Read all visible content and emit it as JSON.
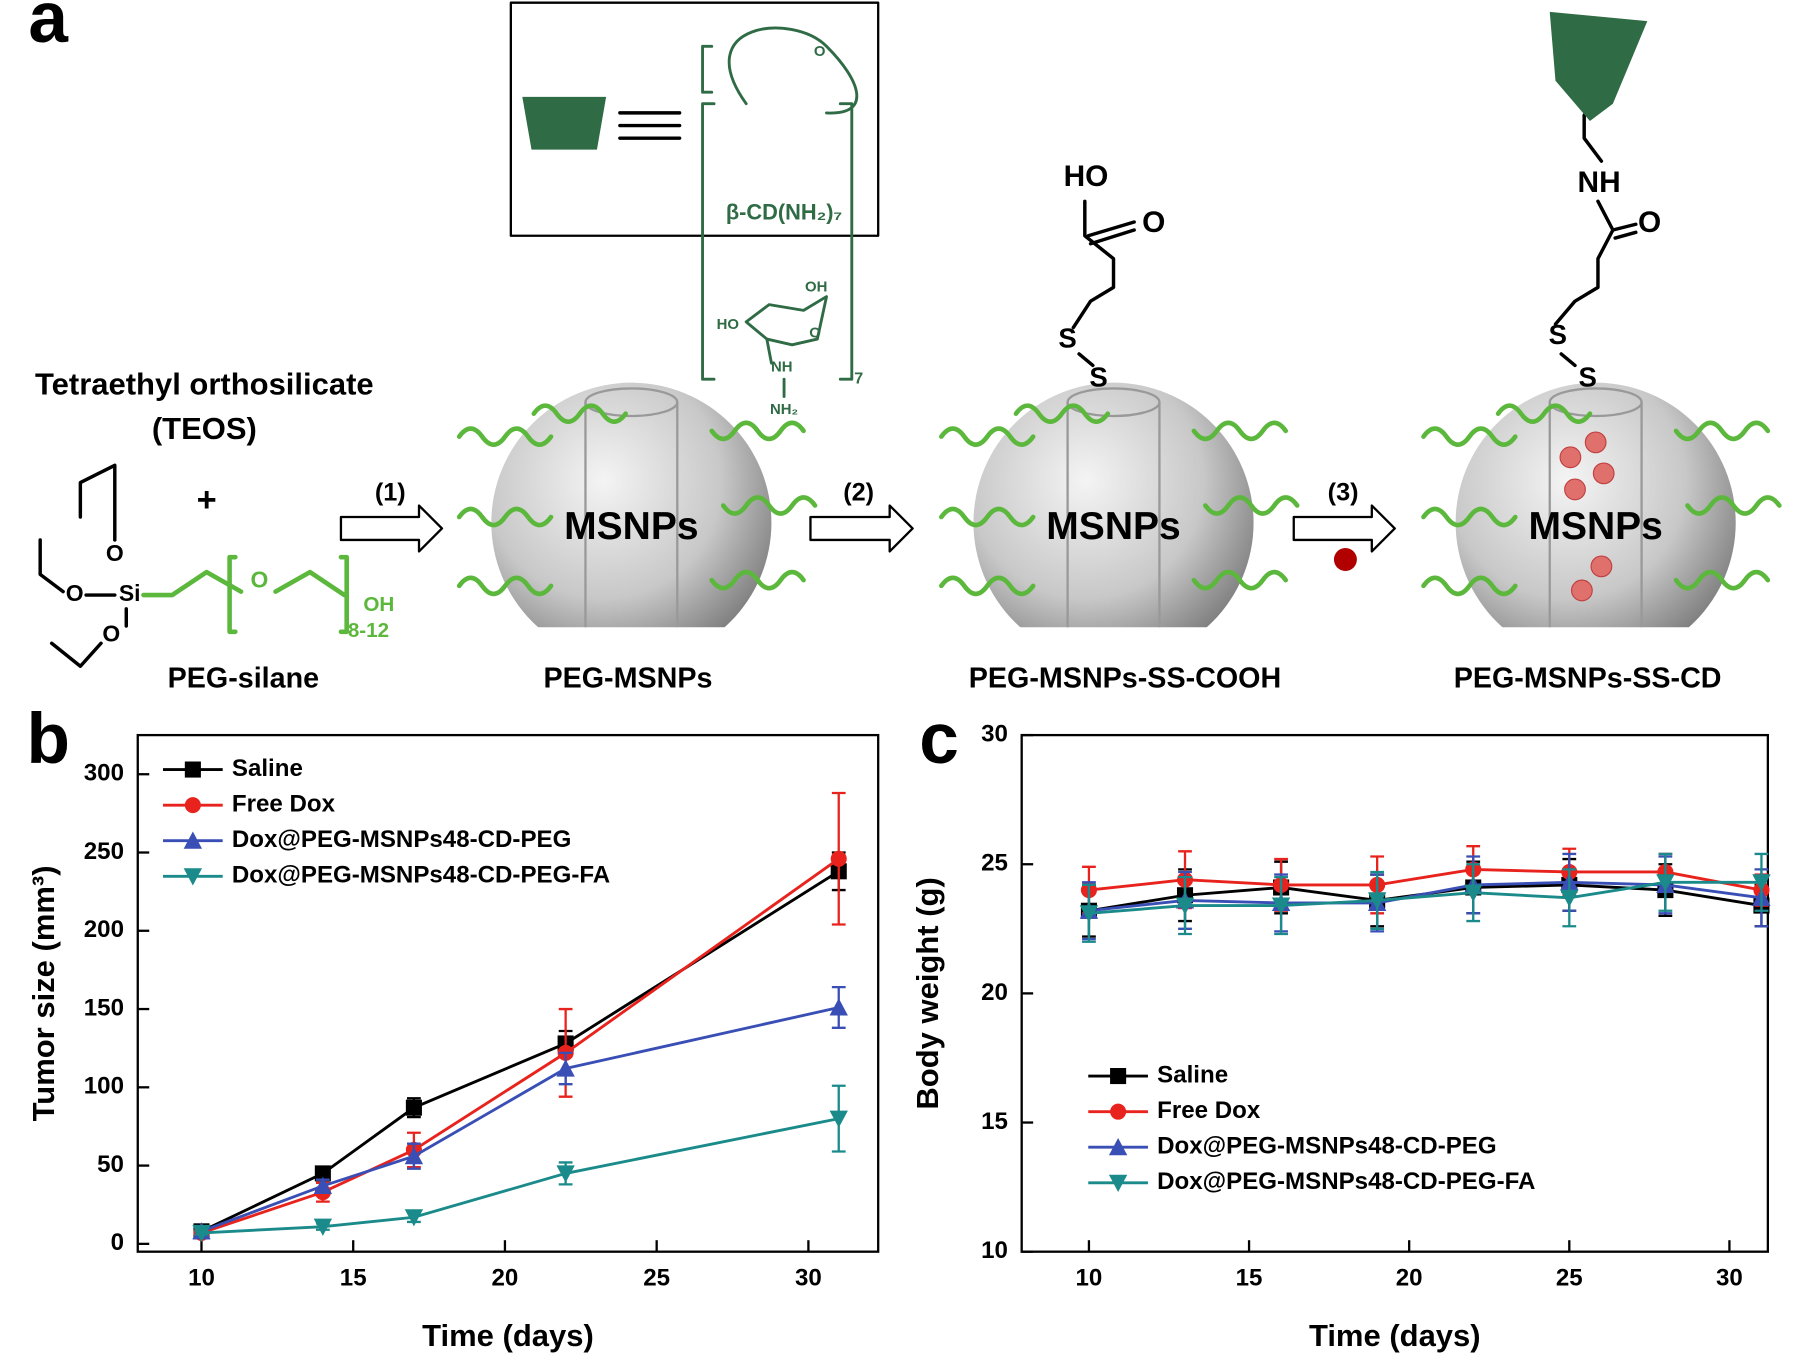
{
  "diagram": {
    "panel_labels": [
      "a",
      "b",
      "c"
    ],
    "inset_label": "β-CD(NH₂)₇",
    "teos": [
      "Tetraethyl orthosilicate",
      "(TEOS)"
    ],
    "plus": "+",
    "steps": [
      "(1)",
      "(2)",
      "(3)"
    ],
    "core": "MSNPs",
    "products": [
      "PEG-silane",
      "PEG-MSNPs",
      "PEG-MSNPs-SS-COOH",
      "PEG-MSNPs-SS-CD"
    ],
    "atoms": [
      "O",
      "Si",
      "O",
      "O",
      "O",
      "OH",
      "8-12",
      "HO",
      "O",
      "S",
      "S",
      "NH",
      "O",
      "S",
      "S",
      "HO",
      "OH",
      "O",
      "O",
      "NH",
      "NH₂",
      "7"
    ]
  },
  "chart_data": [
    {
      "type": "line",
      "xlabel": "Time (days)",
      "ylabel": "Tumor size (mm³)",
      "x": [
        10,
        14,
        17,
        22,
        31
      ],
      "xlim": [
        7.9,
        32.3
      ],
      "ylim": [
        -5,
        325
      ],
      "xticks": [
        10,
        15,
        20,
        25,
        30
      ],
      "yticks": [
        0,
        50,
        100,
        150,
        200,
        250,
        300
      ],
      "legend": "upper left",
      "series": [
        {
          "name": "Saline",
          "color": "#000000",
          "marker": "square",
          "values": [
            8,
            45,
            87,
            128,
            238
          ],
          "errors": [
            2,
            3,
            6,
            8,
            12
          ]
        },
        {
          "name": "Free Dox",
          "color": "#e8231d",
          "marker": "circle",
          "values": [
            7,
            33,
            60,
            122,
            246
          ],
          "errors": [
            2,
            6,
            11,
            28,
            42
          ]
        },
        {
          "name": "Dox@PEG-MSNPs48-CD-PEG",
          "color": "#3a4fb5",
          "marker": "triangle-up",
          "values": [
            8,
            37,
            56,
            112,
            151
          ],
          "errors": [
            2,
            4,
            8,
            10,
            13
          ]
        },
        {
          "name": "Dox@PEG-MSNPs48-CD-PEG-FA",
          "color": "#1a8a8a",
          "marker": "triangle-down",
          "values": [
            7,
            11,
            17,
            45,
            80
          ],
          "errors": [
            1,
            2,
            3,
            7,
            21
          ]
        }
      ]
    },
    {
      "type": "line",
      "xlabel": "Time (days)",
      "ylabel": "Body weight (g)",
      "x": [
        10,
        13,
        16,
        19,
        22,
        25,
        28,
        31
      ],
      "xlim": [
        7.9,
        31.2
      ],
      "ylim": [
        10,
        30
      ],
      "xticks": [
        10,
        15,
        20,
        25,
        30
      ],
      "yticks": [
        10,
        15,
        20,
        25,
        30
      ],
      "legend": "lower left",
      "series": [
        {
          "name": "Saline",
          "color": "#000000",
          "marker": "square",
          "values": [
            23.2,
            23.8,
            24.1,
            23.6,
            24.1,
            24.2,
            24.0,
            23.4
          ],
          "errors": [
            1.0,
            1.0,
            1.0,
            1.0,
            1.0,
            1.0,
            1.0,
            0.8
          ]
        },
        {
          "name": "Free Dox",
          "color": "#e8231d",
          "marker": "circle",
          "values": [
            24.0,
            24.4,
            24.2,
            24.2,
            24.8,
            24.7,
            24.7,
            24.0
          ],
          "errors": [
            0.9,
            1.1,
            1.0,
            1.1,
            0.9,
            0.9,
            0.7,
            0.6
          ]
        },
        {
          "name": "Dox@PEG-MSNPs48-CD-PEG",
          "color": "#3a4fb5",
          "marker": "triangle-up",
          "values": [
            23.2,
            23.6,
            23.5,
            23.5,
            24.2,
            24.3,
            24.2,
            23.7
          ],
          "errors": [
            1.1,
            1.1,
            1.1,
            1.1,
            1.1,
            1.1,
            1.1,
            1.1
          ]
        },
        {
          "name": "Dox@PEG-MSNPs48-CD-PEG-FA",
          "color": "#1a8a8a",
          "marker": "triangle-down",
          "values": [
            23.1,
            23.4,
            23.4,
            23.6,
            23.9,
            23.7,
            24.3,
            24.3
          ],
          "errors": [
            1.1,
            1.1,
            1.1,
            1.1,
            1.1,
            1.1,
            1.1,
            1.1
          ]
        }
      ]
    }
  ]
}
